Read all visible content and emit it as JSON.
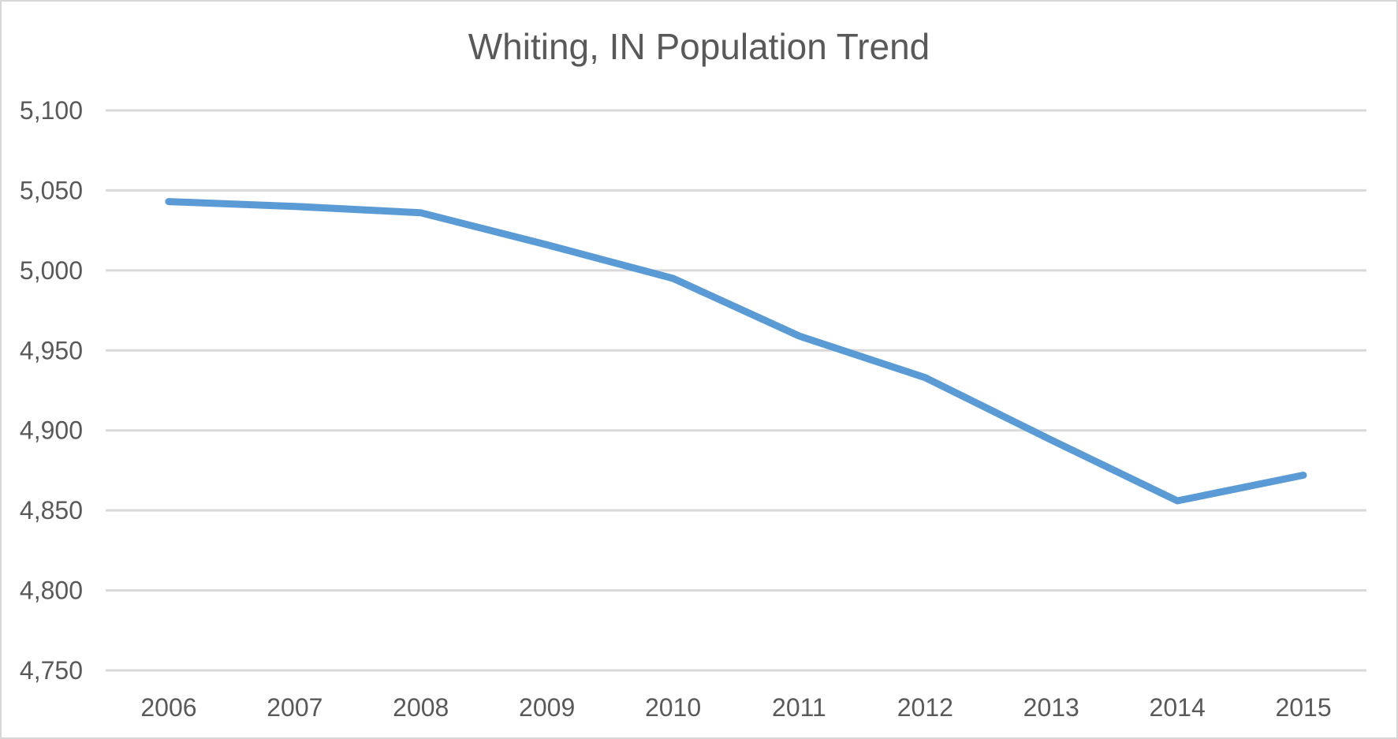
{
  "chart_data": {
    "type": "line",
    "title": "Whiting, IN Population Trend",
    "categories": [
      "2006",
      "2007",
      "2008",
      "2009",
      "2010",
      "2011",
      "2012",
      "2013",
      "2014",
      "2015"
    ],
    "values": [
      5043,
      5040,
      5036,
      5016,
      4995,
      4959,
      4933,
      4894,
      4856,
      4872
    ],
    "xlabel": "",
    "ylabel": "",
    "ylim": [
      4750,
      5100
    ],
    "y_ticks": [
      4750,
      4800,
      4850,
      4900,
      4950,
      5000,
      5050,
      5100
    ],
    "y_tick_labels": [
      "4,750",
      "4,800",
      "4,850",
      "4,900",
      "4,950",
      "5,000",
      "5,050",
      "5,100"
    ],
    "grid": true,
    "legend": false,
    "legend_position": "none"
  },
  "style": {
    "line_color": "#5B9BD5",
    "gridline_color": "#D9D9D9",
    "text_color": "#595959",
    "border_color": "#D7D7D7",
    "background_color": "#FFFFFF"
  }
}
